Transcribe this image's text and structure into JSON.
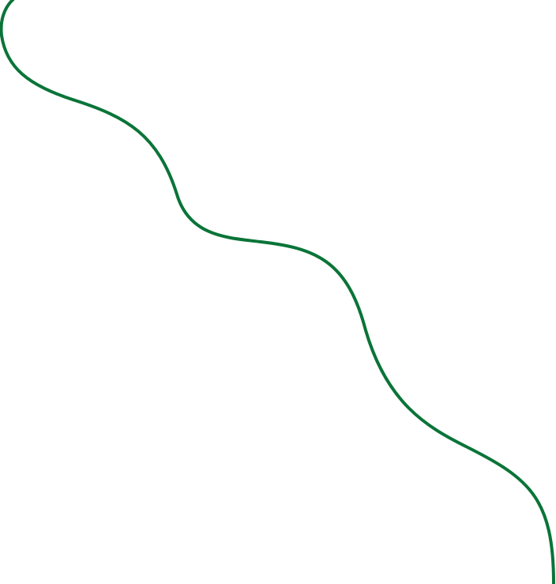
{
  "curve": {
    "stroke_color": "#0a7438",
    "background_color": "#ffffff"
  }
}
